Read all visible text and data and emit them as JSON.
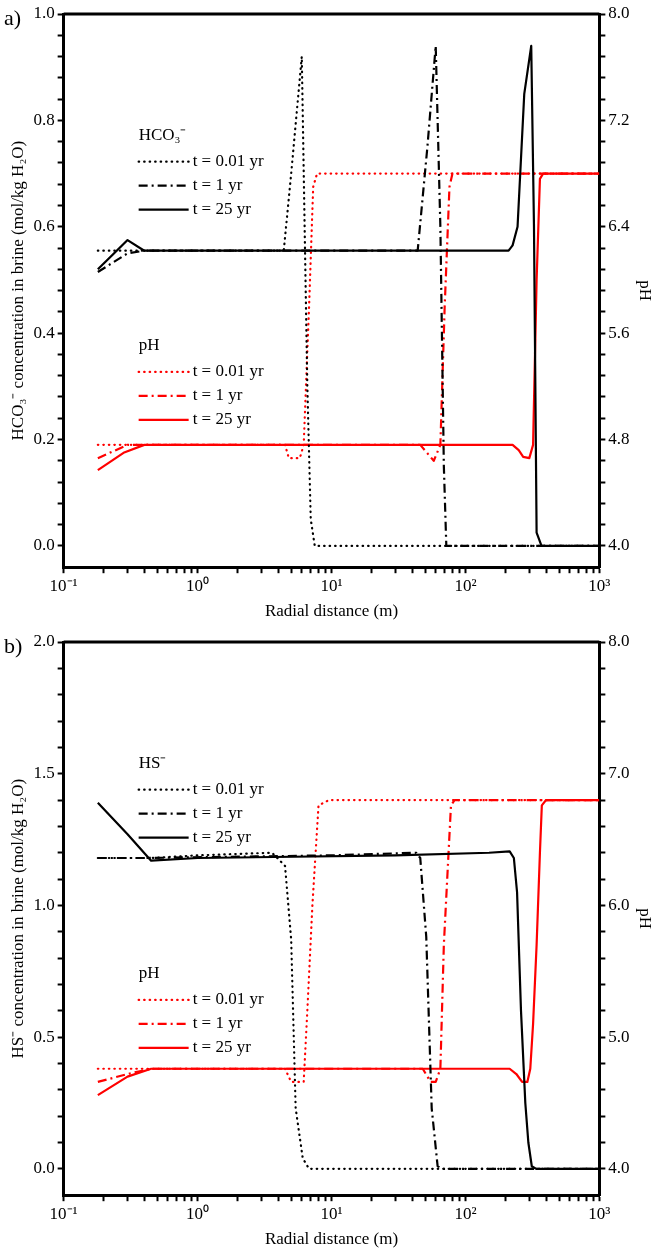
{
  "chart_data": [
    {
      "type": "line",
      "title": "a)",
      "xlabel": "Radial distance (m)",
      "ylabel": "HCO₃⁻ concentration in brine (mol/kg H₂O)",
      "y2label": "pH",
      "log": "x",
      "grid": false,
      "legend": "left",
      "marker": "none",
      "annotations": [
        "HCO₃⁻",
        "pH"
      ],
      "xlim": [
        0.1,
        1000
      ],
      "xticks": [
        {
          "value": 0.1,
          "label": "10⁻¹"
        },
        {
          "value": 0.2,
          "label": null
        },
        {
          "value": 0.3,
          "label": null
        },
        {
          "value": 0.4,
          "label": null
        },
        {
          "value": 0.5,
          "label": null
        },
        {
          "value": 0.6,
          "label": null
        },
        {
          "value": 0.7,
          "label": null
        },
        {
          "value": 0.8,
          "label": null
        },
        {
          "value": 0.9,
          "label": null
        },
        {
          "value": 1,
          "label": "10⁰"
        },
        {
          "value": 2,
          "label": null
        },
        {
          "value": 3,
          "label": null
        },
        {
          "value": 4,
          "label": null
        },
        {
          "value": 5,
          "label": null
        },
        {
          "value": 6,
          "label": null
        },
        {
          "value": 7,
          "label": null
        },
        {
          "value": 8,
          "label": null
        },
        {
          "value": 9,
          "label": null
        },
        {
          "value": 10,
          "label": "10¹"
        },
        {
          "value": 20,
          "label": null
        },
        {
          "value": 30,
          "label": null
        },
        {
          "value": 40,
          "label": null
        },
        {
          "value": 50,
          "label": null
        },
        {
          "value": 60,
          "label": null
        },
        {
          "value": 70,
          "label": null
        },
        {
          "value": 80,
          "label": null
        },
        {
          "value": 90,
          "label": null
        },
        {
          "value": 100,
          "label": "10²"
        },
        {
          "value": 200,
          "label": null
        },
        {
          "value": 300,
          "label": null
        },
        {
          "value": 400,
          "label": null
        },
        {
          "value": 500,
          "label": null
        },
        {
          "value": 600,
          "label": null
        },
        {
          "value": 700,
          "label": null
        },
        {
          "value": 800,
          "label": null
        },
        {
          "value": 900,
          "label": null
        },
        {
          "value": 1000,
          "label": "10³"
        }
      ],
      "ylim": [
        -0.04,
        1.0
      ],
      "yticks": [
        {
          "value": 0,
          "label": "0.0"
        },
        {
          "value": 0.04,
          "label": null
        },
        {
          "value": 0.08,
          "label": null
        },
        {
          "value": 0.12,
          "label": null
        },
        {
          "value": 0.16,
          "label": null
        },
        {
          "value": 0.2,
          "label": "0.2"
        },
        {
          "value": 0.24,
          "label": null
        },
        {
          "value": 0.28,
          "label": null
        },
        {
          "value": 0.32,
          "label": null
        },
        {
          "value": 0.36,
          "label": null
        },
        {
          "value": 0.4,
          "label": "0.4"
        },
        {
          "value": 0.44,
          "label": null
        },
        {
          "value": 0.48,
          "label": null
        },
        {
          "value": 0.52,
          "label": null
        },
        {
          "value": 0.56,
          "label": null
        },
        {
          "value": 0.6,
          "label": "0.6"
        },
        {
          "value": 0.64,
          "label": null
        },
        {
          "value": 0.68,
          "label": null
        },
        {
          "value": 0.72,
          "label": null
        },
        {
          "value": 0.76,
          "label": null
        },
        {
          "value": 0.8,
          "label": "0.8"
        },
        {
          "value": 0.84,
          "label": null
        },
        {
          "value": 0.88,
          "label": null
        },
        {
          "value": 0.92,
          "label": null
        },
        {
          "value": 0.96,
          "label": null
        },
        {
          "value": 1.0,
          "label": "1.0"
        }
      ],
      "y2lim": [
        3.84,
        8.0
      ],
      "y2ticks": [
        {
          "value": 4.0,
          "label": "4.0"
        },
        {
          "value": 4.16,
          "label": null
        },
        {
          "value": 4.32,
          "label": null
        },
        {
          "value": 4.48,
          "label": null
        },
        {
          "value": 4.64,
          "label": null
        },
        {
          "value": 4.8,
          "label": "4.8"
        },
        {
          "value": 4.96,
          "label": null
        },
        {
          "value": 5.12,
          "label": null
        },
        {
          "value": 5.28,
          "label": null
        },
        {
          "value": 5.44,
          "label": null
        },
        {
          "value": 5.6,
          "label": "5.6"
        },
        {
          "value": 5.76,
          "label": null
        },
        {
          "value": 5.92,
          "label": null
        },
        {
          "value": 6.08,
          "label": null
        },
        {
          "value": 6.24,
          "label": null
        },
        {
          "value": 6.4,
          "label": "6.4"
        },
        {
          "value": 6.56,
          "label": null
        },
        {
          "value": 6.72,
          "label": null
        },
        {
          "value": 6.88,
          "label": null
        },
        {
          "value": 7.04,
          "label": null
        },
        {
          "value": 7.2,
          "label": "7.2"
        },
        {
          "value": 7.36,
          "label": null
        },
        {
          "value": 7.52,
          "label": null
        },
        {
          "value": 7.68,
          "label": null
        },
        {
          "value": 7.84,
          "label": null
        },
        {
          "value": 8.0,
          "label": "8.0"
        }
      ],
      "series": [
        {
          "name": "t = 0.01 yr",
          "color": "#000000",
          "line_style": "dotted",
          "x": [
            0.18,
            0.4,
            4.4,
            5.0,
            6.0,
            6.3,
            6.6,
            7.0,
            7.5,
            1000
          ],
          "values": [
            0.555,
            0.555,
            0.555,
            0.7,
            0.92,
            0.6,
            0.3,
            0.05,
            0,
            0
          ]
        },
        {
          "name": "t = 1 yr",
          "color": "#000000",
          "line_style": "dashdot",
          "x": [
            0.18,
            0.3,
            0.4,
            44,
            52,
            60,
            65,
            69,
            72,
            1000
          ],
          "values": [
            0.515,
            0.55,
            0.555,
            0.555,
            0.75,
            0.94,
            0.6,
            0.15,
            0,
            0
          ]
        },
        {
          "name": "t = 25 yr",
          "color": "#000000",
          "line_style": "solid",
          "x": [
            0.18,
            0.3,
            0.4,
            210,
            225,
            245,
            275,
            310,
            325,
            340,
            370,
            1000
          ],
          "values": [
            0.52,
            0.575,
            0.555,
            0.555,
            0.565,
            0.6,
            0.85,
            0.94,
            0.6,
            0.025,
            0,
            0
          ]
        },
        {
          "name": "t = 0.01 yr",
          "color": "#ff0000",
          "line_style": "dotted",
          "axis": "y2",
          "x": [
            0.18,
            4.5,
            4.8,
            5.8,
            6.2,
            6.8,
            7.3,
            7.8,
            1000
          ],
          "values": [
            4.76,
            4.76,
            4.66,
            4.66,
            4.76,
            5.8,
            6.7,
            6.8,
            6.8
          ]
        },
        {
          "name": "t = 1 yr",
          "color": "#ff0000",
          "line_style": "dashdot",
          "axis": "y2",
          "x": [
            0.18,
            0.3,
            0.4,
            46,
            58,
            65,
            70,
            76,
            80,
            1000
          ],
          "values": [
            4.66,
            4.76,
            4.76,
            4.76,
            4.64,
            4.76,
            5.8,
            6.7,
            6.8,
            6.8
          ]
        },
        {
          "name": "t = 25 yr",
          "color": "#ff0000",
          "line_style": "solid",
          "axis": "y2",
          "x": [
            0.18,
            0.28,
            0.4,
            225,
            250,
            270,
            300,
            320,
            340,
            360,
            380,
            1000
          ],
          "values": [
            4.57,
            4.7,
            4.76,
            4.76,
            4.72,
            4.67,
            4.66,
            4.76,
            6.0,
            6.76,
            6.8,
            6.8
          ]
        }
      ]
    },
    {
      "type": "line",
      "title": "b)",
      "xlabel": "Radial distance (m)",
      "ylabel": "HS⁻ concentration in brine (mol/kg H₂O)",
      "y2label": "pH",
      "log": "x",
      "grid": false,
      "legend": "left",
      "marker": "none",
      "annotations": [
        "HS⁻",
        "pH"
      ],
      "xlim": [
        0.1,
        1000
      ],
      "xticks": [
        {
          "value": 0.1,
          "label": "10⁻¹"
        },
        {
          "value": 0.2,
          "label": null
        },
        {
          "value": 0.3,
          "label": null
        },
        {
          "value": 0.4,
          "label": null
        },
        {
          "value": 0.5,
          "label": null
        },
        {
          "value": 0.6,
          "label": null
        },
        {
          "value": 0.7,
          "label": null
        },
        {
          "value": 0.8,
          "label": null
        },
        {
          "value": 0.9,
          "label": null
        },
        {
          "value": 1,
          "label": "10⁰"
        },
        {
          "value": 2,
          "label": null
        },
        {
          "value": 3,
          "label": null
        },
        {
          "value": 4,
          "label": null
        },
        {
          "value": 5,
          "label": null
        },
        {
          "value": 6,
          "label": null
        },
        {
          "value": 7,
          "label": null
        },
        {
          "value": 8,
          "label": null
        },
        {
          "value": 9,
          "label": null
        },
        {
          "value": 10,
          "label": "10¹"
        },
        {
          "value": 20,
          "label": null
        },
        {
          "value": 30,
          "label": null
        },
        {
          "value": 40,
          "label": null
        },
        {
          "value": 50,
          "label": null
        },
        {
          "value": 60,
          "label": null
        },
        {
          "value": 70,
          "label": null
        },
        {
          "value": 80,
          "label": null
        },
        {
          "value": 90,
          "label": null
        },
        {
          "value": 100,
          "label": "10²"
        },
        {
          "value": 200,
          "label": null
        },
        {
          "value": 300,
          "label": null
        },
        {
          "value": 400,
          "label": null
        },
        {
          "value": 500,
          "label": null
        },
        {
          "value": 600,
          "label": null
        },
        {
          "value": 700,
          "label": null
        },
        {
          "value": 800,
          "label": null
        },
        {
          "value": 900,
          "label": null
        },
        {
          "value": 1000,
          "label": "10³"
        }
      ],
      "ylim": [
        -0.1,
        2.0
      ],
      "yticks": [
        {
          "value": 0,
          "label": "0.0"
        },
        {
          "value": 0.1,
          "label": null
        },
        {
          "value": 0.2,
          "label": null
        },
        {
          "value": 0.3,
          "label": null
        },
        {
          "value": 0.4,
          "label": null
        },
        {
          "value": 0.5,
          "label": "0.5"
        },
        {
          "value": 0.6,
          "label": null
        },
        {
          "value": 0.7,
          "label": null
        },
        {
          "value": 0.8,
          "label": null
        },
        {
          "value": 0.9,
          "label": null
        },
        {
          "value": 1.0,
          "label": "1.0"
        },
        {
          "value": 1.1,
          "label": null
        },
        {
          "value": 1.2,
          "label": null
        },
        {
          "value": 1.3,
          "label": null
        },
        {
          "value": 1.4,
          "label": null
        },
        {
          "value": 1.5,
          "label": "1.5"
        },
        {
          "value": 1.6,
          "label": null
        },
        {
          "value": 1.7,
          "label": null
        },
        {
          "value": 1.8,
          "label": null
        },
        {
          "value": 1.9,
          "label": null
        },
        {
          "value": 2.0,
          "label": "2.0"
        }
      ],
      "y2lim": [
        3.8,
        8.0
      ],
      "y2ticks": [
        {
          "value": 4.0,
          "label": "4.0"
        },
        {
          "value": 4.2,
          "label": null
        },
        {
          "value": 4.4,
          "label": null
        },
        {
          "value": 4.6,
          "label": null
        },
        {
          "value": 4.8,
          "label": null
        },
        {
          "value": 5.0,
          "label": "5.0"
        },
        {
          "value": 5.2,
          "label": null
        },
        {
          "value": 5.4,
          "label": null
        },
        {
          "value": 5.6,
          "label": null
        },
        {
          "value": 5.8,
          "label": null
        },
        {
          "value": 6.0,
          "label": "6.0"
        },
        {
          "value": 6.2,
          "label": null
        },
        {
          "value": 6.4,
          "label": null
        },
        {
          "value": 6.6,
          "label": null
        },
        {
          "value": 6.8,
          "label": null
        },
        {
          "value": 7.0,
          "label": "7.0"
        },
        {
          "value": 7.2,
          "label": null
        },
        {
          "value": 7.4,
          "label": null
        },
        {
          "value": 7.6,
          "label": null
        },
        {
          "value": 7.8,
          "label": null
        },
        {
          "value": 8.0,
          "label": "8.0"
        }
      ],
      "series": [
        {
          "name": "t = 0.01 yr",
          "color": "#000000",
          "line_style": "dotted",
          "x": [
            0.18,
            0.45,
            1,
            3.6,
            4.5,
            5.0,
            5.4,
            6.1,
            6.8,
            1000
          ],
          "values": [
            1.18,
            1.18,
            1.19,
            1.2,
            1.15,
            0.87,
            0.23,
            0.04,
            0,
            0
          ]
        },
        {
          "name": "t = 1 yr",
          "color": "#000000",
          "line_style": "dashdot",
          "x": [
            0.18,
            0.4,
            10,
            43,
            46,
            51,
            56,
            62,
            68,
            1000
          ],
          "values": [
            1.18,
            1.18,
            1.19,
            1.2,
            1.18,
            0.88,
            0.23,
            0.01,
            0,
            0
          ]
        },
        {
          "name": "t = 25 yr",
          "color": "#000000",
          "line_style": "solid",
          "x": [
            0.18,
            0.3,
            0.45,
            1,
            30,
            150,
            214,
            230,
            243,
            260,
            280,
            295,
            313,
            338,
            1000
          ],
          "values": [
            1.39,
            1.27,
            1.17,
            1.18,
            1.19,
            1.2,
            1.205,
            1.18,
            1.05,
            0.6,
            0.25,
            0.1,
            0.01,
            0,
            0
          ]
        },
        {
          "name": "t = 0.01 yr",
          "color": "#ff0000",
          "line_style": "dotted",
          "axis": "y2",
          "x": [
            0.18,
            4.5,
            5.0,
            6.2,
            6.6,
            7.2,
            8.0,
            9.6,
            1000
          ],
          "values": [
            4.76,
            4.76,
            4.66,
            4.66,
            5.2,
            6.0,
            6.76,
            6.8,
            6.8
          ]
        },
        {
          "name": "t = 1 yr",
          "color": "#ff0000",
          "line_style": "dashdot",
          "axis": "y2",
          "x": [
            0.18,
            0.3,
            0.45,
            48,
            55,
            60,
            65,
            69,
            78,
            83,
            1000
          ],
          "values": [
            4.66,
            4.72,
            4.76,
            4.76,
            4.66,
            4.66,
            4.76,
            5.7,
            6.76,
            6.8,
            6.8
          ]
        },
        {
          "name": "t = 25 yr",
          "color": "#ff0000",
          "line_style": "solid",
          "axis": "y2",
          "x": [
            0.18,
            0.3,
            0.45,
            214,
            240,
            265,
            290,
            305,
            320,
            340,
            360,
            372,
            400,
            1000
          ],
          "values": [
            4.56,
            4.7,
            4.76,
            4.76,
            4.72,
            4.66,
            4.66,
            4.76,
            5.1,
            5.7,
            6.4,
            6.76,
            6.8,
            6.8
          ]
        }
      ]
    }
  ]
}
